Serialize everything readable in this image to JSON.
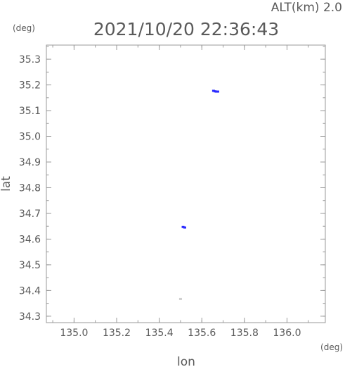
{
  "header": {
    "alt_label": "ALT(km) 2.0",
    "timestamp": "2021/10/20 22:36:43",
    "y_unit": "(deg)",
    "x_unit": "(deg)"
  },
  "chart_data": {
    "type": "scatter",
    "xlabel": "lon",
    "ylabel": "lat",
    "xlim": [
      134.87,
      136.18
    ],
    "ylim": [
      34.275,
      35.355
    ],
    "x_ticks": [
      135.0,
      135.2,
      135.4,
      135.6,
      135.8,
      136.0
    ],
    "x_tick_labels": [
      "135.0",
      "135.2",
      "135.4",
      "135.6",
      "135.8",
      "136.0"
    ],
    "y_ticks": [
      34.3,
      34.4,
      34.5,
      34.6,
      34.7,
      34.8,
      34.9,
      35.0,
      35.1,
      35.2,
      35.3
    ],
    "y_tick_labels": [
      "34.3",
      "34.4",
      "34.5",
      "34.6",
      "34.7",
      "34.8",
      "34.9",
      "35.0",
      "35.1",
      "35.2",
      "35.3"
    ],
    "grid": false,
    "points": [
      {
        "x": 135.655,
        "y": 35.177,
        "color": "#2b2bff"
      },
      {
        "x": 135.662,
        "y": 35.175,
        "color": "#2b2bff"
      },
      {
        "x": 135.668,
        "y": 35.174,
        "color": "#2b2bff"
      },
      {
        "x": 135.675,
        "y": 35.174,
        "color": "#2b2bff"
      },
      {
        "x": 135.512,
        "y": 34.647,
        "color": "#2b2bff"
      },
      {
        "x": 135.52,
        "y": 34.645,
        "color": "#2b2bff"
      },
      {
        "x": 135.5,
        "y": 34.367,
        "color": "#cfcfcf"
      }
    ]
  }
}
